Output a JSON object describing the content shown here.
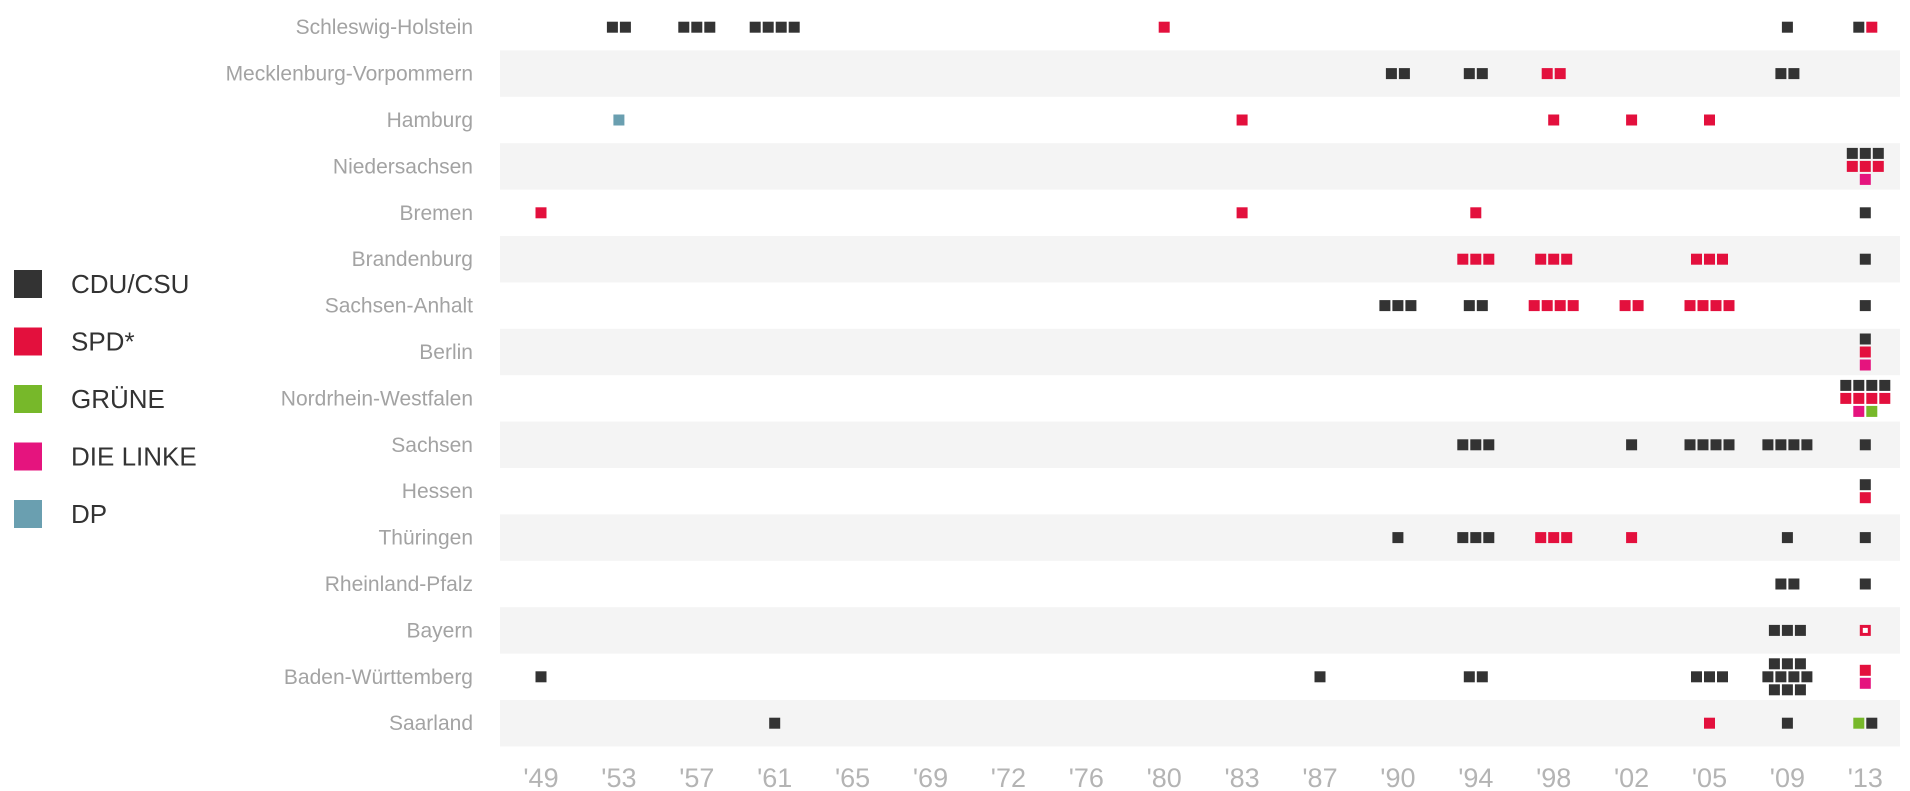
{
  "chart_data": {
    "type": "other",
    "legend_position": "left",
    "legend": [
      {
        "key": "CDU",
        "label": "CDU/CSU",
        "color": "#333333"
      },
      {
        "key": "SPD",
        "label": "SPD*",
        "color": "#e3103d"
      },
      {
        "key": "GRU",
        "label": "GRÜNE",
        "color": "#77b82a"
      },
      {
        "key": "LIN",
        "label": "DIE LINKE",
        "color": "#e5147e"
      },
      {
        "key": "DP",
        "label": "DP",
        "color": "#6a9fb0"
      }
    ],
    "x_ticks": [
      "'49",
      "'53",
      "'57",
      "'61",
      "'65",
      "'69",
      "'72",
      "'76",
      "'80",
      "'83",
      "'87",
      "'90",
      "'94",
      "'98",
      "'02",
      "'05",
      "'09",
      "'13"
    ],
    "states": [
      {
        "name": "Schleswig-Holstein",
        "entries": [
          {
            "year": "'53",
            "rows": [
              [
                "CDU",
                "CDU"
              ]
            ]
          },
          {
            "year": "'57",
            "rows": [
              [
                "CDU",
                "CDU",
                "CDU"
              ]
            ]
          },
          {
            "year": "'61",
            "rows": [
              [
                "CDU",
                "CDU",
                "CDU",
                "CDU"
              ]
            ]
          },
          {
            "year": "'80",
            "rows": [
              [
                "SPD"
              ]
            ]
          },
          {
            "year": "'09",
            "rows": [
              [
                "CDU"
              ]
            ]
          },
          {
            "year": "'13",
            "rows": [
              [
                "CDU",
                "SPD"
              ]
            ]
          }
        ]
      },
      {
        "name": "Mecklenburg-Vorpommern",
        "entries": [
          {
            "year": "'90",
            "rows": [
              [
                "CDU",
                "CDU"
              ]
            ]
          },
          {
            "year": "'94",
            "rows": [
              [
                "CDU",
                "CDU"
              ]
            ]
          },
          {
            "year": "'98",
            "rows": [
              [
                "SPD",
                "SPD"
              ]
            ]
          },
          {
            "year": "'09",
            "rows": [
              [
                "CDU",
                "CDU"
              ]
            ]
          }
        ]
      },
      {
        "name": "Hamburg",
        "entries": [
          {
            "year": "'53",
            "rows": [
              [
                "DP"
              ]
            ]
          },
          {
            "year": "'83",
            "rows": [
              [
                "SPD"
              ]
            ]
          },
          {
            "year": "'98",
            "rows": [
              [
                "SPD"
              ]
            ]
          },
          {
            "year": "'02",
            "rows": [
              [
                "SPD"
              ]
            ]
          },
          {
            "year": "'05",
            "rows": [
              [
                "SPD"
              ]
            ]
          }
        ]
      },
      {
        "name": "Niedersachsen",
        "entries": [
          {
            "year": "'13",
            "rows": [
              [
                "CDU",
                "CDU",
                "CDU"
              ],
              [
                "SPD",
                "SPD",
                "SPD"
              ],
              [
                "LIN"
              ]
            ]
          }
        ]
      },
      {
        "name": "Bremen",
        "entries": [
          {
            "year": "'49",
            "rows": [
              [
                "SPD"
              ]
            ]
          },
          {
            "year": "'83",
            "rows": [
              [
                "SPD"
              ]
            ]
          },
          {
            "year": "'94",
            "rows": [
              [
                "SPD"
              ]
            ]
          },
          {
            "year": "'13",
            "rows": [
              [
                "CDU"
              ]
            ]
          }
        ]
      },
      {
        "name": "Brandenburg",
        "entries": [
          {
            "year": "'94",
            "rows": [
              [
                "SPD",
                "SPD",
                "SPD"
              ]
            ]
          },
          {
            "year": "'98",
            "rows": [
              [
                "SPD",
                "SPD",
                "SPD"
              ]
            ]
          },
          {
            "year": "'05",
            "rows": [
              [
                "SPD",
                "SPD",
                "SPD"
              ]
            ]
          },
          {
            "year": "'13",
            "rows": [
              [
                "CDU"
              ]
            ]
          }
        ]
      },
      {
        "name": "Sachsen-Anhalt",
        "entries": [
          {
            "year": "'90",
            "rows": [
              [
                "CDU",
                "CDU",
                "CDU"
              ]
            ]
          },
          {
            "year": "'94",
            "rows": [
              [
                "CDU",
                "CDU"
              ]
            ]
          },
          {
            "year": "'98",
            "rows": [
              [
                "SPD",
                "SPD",
                "SPD",
                "SPD"
              ]
            ]
          },
          {
            "year": "'02",
            "rows": [
              [
                "SPD",
                "SPD"
              ]
            ]
          },
          {
            "year": "'05",
            "rows": [
              [
                "SPD",
                "SPD",
                "SPD",
                "SPD"
              ]
            ]
          },
          {
            "year": "'13",
            "rows": [
              [
                "CDU"
              ]
            ]
          }
        ]
      },
      {
        "name": "Berlin",
        "entries": [
          {
            "year": "'13",
            "rows": [
              [
                "CDU"
              ],
              [
                "SPD"
              ],
              [
                "LIN"
              ]
            ]
          }
        ]
      },
      {
        "name": "Nordrhein-Westfalen",
        "entries": [
          {
            "year": "'13",
            "rows": [
              [
                "CDU",
                "CDU",
                "CDU",
                "CDU"
              ],
              [
                "SPD",
                "SPD",
                "SPD",
                "SPD"
              ],
              [
                "LIN",
                "GRU"
              ]
            ]
          }
        ]
      },
      {
        "name": "Sachsen",
        "entries": [
          {
            "year": "'94",
            "rows": [
              [
                "CDU",
                "CDU",
                "CDU"
              ]
            ]
          },
          {
            "year": "'02",
            "rows": [
              [
                "CDU"
              ]
            ]
          },
          {
            "year": "'05",
            "rows": [
              [
                "CDU",
                "CDU",
                "CDU",
                "CDU"
              ]
            ]
          },
          {
            "year": "'09",
            "rows": [
              [
                "CDU",
                "CDU",
                "CDU",
                "CDU"
              ]
            ]
          },
          {
            "year": "'13",
            "rows": [
              [
                "CDU"
              ]
            ]
          }
        ]
      },
      {
        "name": "Hessen",
        "entries": [
          {
            "year": "'13",
            "rows": [
              [
                "CDU"
              ],
              [
                "SPD"
              ]
            ]
          }
        ]
      },
      {
        "name": "Thüringen",
        "entries": [
          {
            "year": "'90",
            "rows": [
              [
                "CDU"
              ]
            ]
          },
          {
            "year": "'94",
            "rows": [
              [
                "CDU",
                "CDU",
                "CDU"
              ]
            ]
          },
          {
            "year": "'98",
            "rows": [
              [
                "SPD",
                "SPD",
                "SPD"
              ]
            ]
          },
          {
            "year": "'02",
            "rows": [
              [
                "SPD"
              ]
            ]
          },
          {
            "year": "'09",
            "rows": [
              [
                "CDU"
              ]
            ]
          },
          {
            "year": "'13",
            "rows": [
              [
                "CDU"
              ]
            ]
          }
        ]
      },
      {
        "name": "Rheinland-Pfalz",
        "entries": [
          {
            "year": "'09",
            "rows": [
              [
                "CDU",
                "CDU"
              ]
            ]
          },
          {
            "year": "'13",
            "rows": [
              [
                "CDU"
              ]
            ]
          }
        ]
      },
      {
        "name": "Bayern",
        "entries": [
          {
            "year": "'09",
            "rows": [
              [
                "CDU",
                "CDU",
                "CDU"
              ]
            ]
          },
          {
            "year": "'13",
            "rows": [
              [
                "SPD-outline"
              ]
            ]
          }
        ]
      },
      {
        "name": "Baden-Württemberg",
        "entries": [
          {
            "year": "'49",
            "rows": [
              [
                "CDU"
              ]
            ]
          },
          {
            "year": "'87",
            "rows": [
              [
                "CDU"
              ]
            ]
          },
          {
            "year": "'94",
            "rows": [
              [
                "CDU",
                "CDU"
              ]
            ]
          },
          {
            "year": "'05",
            "rows": [
              [
                "CDU",
                "CDU",
                "CDU"
              ]
            ]
          },
          {
            "year": "'09",
            "rows": [
              [
                "CDU",
                "CDU",
                "CDU"
              ],
              [
                "CDU",
                "CDU",
                "CDU",
                "CDU"
              ],
              [
                "CDU",
                "CDU",
                "CDU"
              ]
            ]
          },
          {
            "year": "'13",
            "rows": [
              [
                "SPD"
              ],
              [
                "LIN"
              ]
            ]
          }
        ]
      },
      {
        "name": "Saarland",
        "entries": [
          {
            "year": "'61",
            "rows": [
              [
                "CDU"
              ]
            ]
          },
          {
            "year": "'05",
            "rows": [
              [
                "SPD"
              ]
            ]
          },
          {
            "year": "'09",
            "rows": [
              [
                "CDU"
              ]
            ]
          },
          {
            "year": "'13",
            "rows": [
              [
                "GRU",
                "CDU"
              ]
            ]
          }
        ]
      }
    ]
  }
}
